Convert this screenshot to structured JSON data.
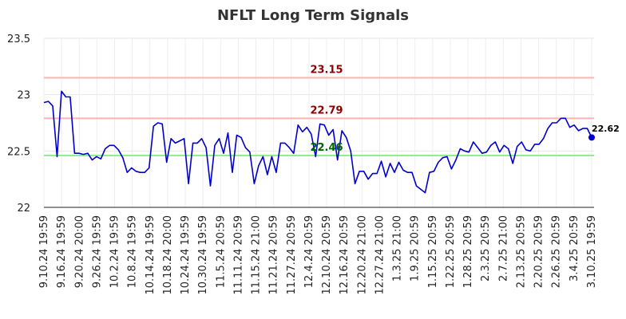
{
  "chart_data": {
    "type": "line",
    "title": "NFLT Long Term Signals",
    "xlabel": "",
    "ylabel": "",
    "ylim": [
      22,
      23.5
    ],
    "yticks": [
      "22",
      "22.5",
      "23",
      "23.5"
    ],
    "grid": true,
    "legend": "none",
    "colors": {
      "line": "#0000cc",
      "upper": "#ffb3b3",
      "lower": "#90ee90",
      "upper_text": "#8b0000",
      "lower_text": "#006400"
    },
    "x_tick_labels": [
      "9.10.24 19:59",
      "9.16.24 19:59",
      "9.20.24 20:00",
      "9.26.24 19:59",
      "10.2.24 19:59",
      "10.8.24 19:59",
      "10.14.24 19:59",
      "10.18.24 20:00",
      "10.24.24 19:59",
      "10.30.24 19:59",
      "11.5.24 20:59",
      "11.11.24 20:59",
      "11.15.24 21:00",
      "11.21.24 20:59",
      "11.27.24 20:59",
      "12.4.24 20:59",
      "12.10.24 20:59",
      "12.16.24 20:59",
      "12.20.24 21:00",
      "12.27.24 21:00",
      "1.3.25 21:00",
      "1.9.25 20:59",
      "1.15.25 20:59",
      "1.22.25 20:59",
      "1.28.25 20:59",
      "2.3.25 20:59",
      "2.7.25 21:00",
      "2.13.25 20:59",
      "2.20.25 20:59",
      "2.26.25 20:59",
      "3.4.25 20:59",
      "3.10.25 19:59"
    ],
    "reference_lines": [
      {
        "label": "23.15",
        "value": 23.15
      },
      {
        "label": "22.79",
        "value": 22.79
      },
      {
        "label": "22.46",
        "value": 22.46
      }
    ],
    "last_label": "22.62",
    "series": [
      {
        "values": [
          22.93,
          22.94,
          22.9,
          22.45,
          23.03,
          22.98,
          22.98,
          22.48,
          22.48,
          22.47,
          22.48,
          22.42,
          22.45,
          22.43,
          22.52,
          22.55,
          22.55,
          22.51,
          22.44,
          22.31,
          22.35,
          22.32,
          22.31,
          22.31,
          22.35,
          22.72,
          22.75,
          22.74,
          22.4,
          22.61,
          22.57,
          22.59,
          22.61,
          22.21,
          22.57,
          22.57,
          22.61,
          22.53,
          22.19,
          22.55,
          22.61,
          22.48,
          22.66,
          22.31,
          22.64,
          22.62,
          22.53,
          22.49,
          22.21,
          22.37,
          22.45,
          22.29,
          22.45,
          22.31,
          22.57,
          22.57,
          22.53,
          22.48,
          22.73,
          22.67,
          22.71,
          22.65,
          22.45,
          22.74,
          22.73,
          22.64,
          22.69,
          22.42,
          22.68,
          22.62,
          22.5,
          22.21,
          22.32,
          22.32,
          22.25,
          22.3,
          22.3,
          22.41,
          22.27,
          22.39,
          22.31,
          22.4,
          22.33,
          22.31,
          22.31,
          22.19,
          22.16,
          22.13,
          22.31,
          22.32,
          22.4,
          22.44,
          22.45,
          22.34,
          22.42,
          22.52,
          22.5,
          22.49,
          22.58,
          22.53,
          22.48,
          22.49,
          22.55,
          22.58,
          22.49,
          22.55,
          22.52,
          22.39,
          22.54,
          22.58,
          22.51,
          22.5,
          22.56,
          22.56,
          22.61,
          22.7,
          22.75,
          22.75,
          22.79,
          22.79,
          22.71,
          22.73,
          22.68,
          22.7,
          22.7,
          22.62
        ]
      }
    ]
  }
}
